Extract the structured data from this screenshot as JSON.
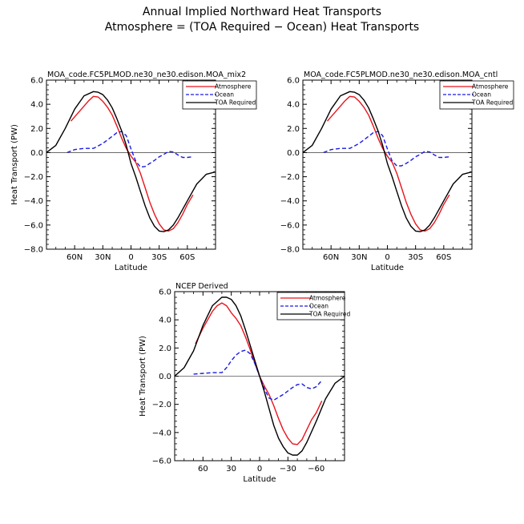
{
  "figure": {
    "title_line1": "Annual Implied Northward Heat Transports",
    "title_line2": "Atmosphere = (TOA Required − Ocean) Heat Transports"
  },
  "colors": {
    "atmosphere": "#e8141c",
    "ocean": "#1a1ae6",
    "toa": "#000000",
    "zero_line": "#555555"
  },
  "chart_data": [
    {
      "type": "line",
      "title": "MOA_code.FC5PLMOD.ne30_ne30.edison.MOA_mix2",
      "xlabel": "Latitude",
      "ylabel": "Heat Transport (PW)",
      "xlim": [
        90,
        -90
      ],
      "ylim": [
        -8,
        6
      ],
      "xticks": [
        60,
        30,
        0,
        -30,
        -60
      ],
      "xtick_labels": [
        "60N",
        "30N",
        "0",
        "30S",
        "60S"
      ],
      "yticks": [
        -8,
        -6,
        -4,
        -2,
        0,
        2,
        4,
        6
      ],
      "ytick_labels": [
        "−8.0",
        "−6.0",
        "−4.0",
        "−2.0",
        "0.0",
        "2.0",
        "4.0",
        "6.0"
      ],
      "legend": [
        "Atmosphere",
        "Ocean",
        "TOA Required"
      ],
      "series": [
        {
          "name": "Atmosphere",
          "x": [
            64,
            55,
            45,
            40,
            35,
            30,
            25,
            20,
            15,
            10,
            5,
            0,
            -5,
            -10,
            -15,
            -20,
            -25,
            -30,
            -35,
            -40,
            -45,
            -50,
            -55,
            -60,
            -66
          ],
          "y": [
            2.6,
            3.4,
            4.3,
            4.65,
            4.6,
            4.25,
            3.75,
            3.1,
            2.2,
            1.2,
            0.35,
            -0.3,
            -0.8,
            -1.7,
            -2.9,
            -4.1,
            -5.1,
            -5.9,
            -6.4,
            -6.5,
            -6.3,
            -5.8,
            -5.1,
            -4.3,
            -3.5
          ]
        },
        {
          "name": "Ocean",
          "x": [
            68,
            60,
            50,
            40,
            30,
            20,
            15,
            10,
            5,
            0,
            -5,
            -10,
            -15,
            -20,
            -25,
            -30,
            -35,
            -40,
            -45,
            -50,
            -55,
            -60,
            -66
          ],
          "y": [
            0.0,
            0.25,
            0.35,
            0.35,
            0.75,
            1.35,
            1.65,
            1.75,
            1.4,
            0.3,
            -0.7,
            -1.2,
            -1.15,
            -0.9,
            -0.65,
            -0.35,
            -0.15,
            0.1,
            0.05,
            -0.2,
            -0.4,
            -0.4,
            -0.35
          ]
        },
        {
          "name": "TOA Required",
          "x": [
            90,
            80,
            70,
            60,
            50,
            40,
            35,
            30,
            25,
            20,
            15,
            10,
            5,
            0,
            -5,
            -10,
            -15,
            -20,
            -25,
            -30,
            -35,
            -40,
            -45,
            -50,
            -60,
            -70,
            -80,
            -90
          ],
          "y": [
            0.0,
            0.6,
            2.0,
            3.6,
            4.7,
            5.05,
            5.0,
            4.8,
            4.35,
            3.7,
            2.8,
            1.8,
            0.6,
            -0.9,
            -2.0,
            -3.2,
            -4.4,
            -5.4,
            -6.1,
            -6.5,
            -6.55,
            -6.4,
            -6.0,
            -5.4,
            -4.0,
            -2.6,
            -1.8,
            -1.6
          ]
        }
      ]
    },
    {
      "type": "line",
      "title": "MOA_code.FC5PLMOD.ne30_ne30.edison.MOA_cntl",
      "xlabel": "Latitude",
      "ylabel": "",
      "xlim": [
        90,
        -90
      ],
      "ylim": [
        -8,
        6
      ],
      "xticks": [
        60,
        30,
        0,
        -30,
        -60
      ],
      "xtick_labels": [
        "60N",
        "30N",
        "0",
        "30S",
        "60S"
      ],
      "yticks": [
        -8,
        -6,
        -4,
        -2,
        0,
        2,
        4,
        6
      ],
      "ytick_labels": [
        "−8.0",
        "−6.0",
        "−4.0",
        "−2.0",
        "0.0",
        "2.0",
        "4.0",
        "6.0"
      ],
      "legend": [
        "Atmosphere",
        "Ocean",
        "TOA Required"
      ],
      "series": [
        {
          "name": "Atmosphere",
          "x": [
            64,
            55,
            45,
            40,
            35,
            30,
            25,
            20,
            15,
            10,
            5,
            0,
            -5,
            -10,
            -15,
            -20,
            -25,
            -30,
            -35,
            -40,
            -45,
            -50,
            -55,
            -60,
            -66
          ],
          "y": [
            2.6,
            3.4,
            4.3,
            4.65,
            4.6,
            4.25,
            3.75,
            3.1,
            2.2,
            1.2,
            0.35,
            -0.3,
            -0.8,
            -1.7,
            -2.9,
            -4.1,
            -5.1,
            -5.9,
            -6.4,
            -6.5,
            -6.3,
            -5.8,
            -5.1,
            -4.3,
            -3.5
          ]
        },
        {
          "name": "Ocean",
          "x": [
            68,
            60,
            50,
            40,
            30,
            20,
            15,
            10,
            5,
            0,
            -5,
            -10,
            -15,
            -20,
            -25,
            -30,
            -35,
            -40,
            -45,
            -50,
            -55,
            -60,
            -66
          ],
          "y": [
            0.0,
            0.25,
            0.35,
            0.35,
            0.75,
            1.35,
            1.65,
            1.75,
            1.4,
            0.3,
            -0.7,
            -1.1,
            -1.1,
            -0.9,
            -0.65,
            -0.35,
            -0.15,
            0.1,
            0.05,
            -0.2,
            -0.4,
            -0.4,
            -0.35
          ]
        },
        {
          "name": "TOA Required",
          "x": [
            90,
            80,
            70,
            60,
            50,
            40,
            35,
            30,
            25,
            20,
            15,
            10,
            5,
            0,
            -5,
            -10,
            -15,
            -20,
            -25,
            -30,
            -35,
            -40,
            -45,
            -50,
            -60,
            -70,
            -80,
            -90
          ],
          "y": [
            0.0,
            0.6,
            2.0,
            3.6,
            4.7,
            5.05,
            5.0,
            4.8,
            4.35,
            3.7,
            2.8,
            1.8,
            0.6,
            -0.9,
            -2.0,
            -3.2,
            -4.4,
            -5.4,
            -6.1,
            -6.5,
            -6.55,
            -6.4,
            -6.0,
            -5.4,
            -4.0,
            -2.6,
            -1.8,
            -1.6
          ]
        }
      ]
    },
    {
      "type": "line",
      "title": "NCEP Derived",
      "xlabel": "Latitude",
      "ylabel": "Heat Transport (PW)",
      "xlim": [
        90,
        -90
      ],
      "ylim": [
        -6,
        6
      ],
      "xticks": [
        60,
        30,
        0,
        -30,
        -60
      ],
      "xtick_labels": [
        "60",
        "30",
        "0",
        "−30",
        "−60"
      ],
      "yticks": [
        -6,
        -4,
        -2,
        0,
        2,
        4,
        6
      ],
      "ytick_labels": [
        "−6.0",
        "−4.0",
        "−2.0",
        "0.0",
        "2.0",
        "4.0",
        "6.0"
      ],
      "legend": [
        "Atmosphere",
        "Ocean",
        "TOA Required"
      ],
      "series": [
        {
          "name": "Atmosphere",
          "x": [
            68,
            60,
            50,
            45,
            40,
            35,
            30,
            25,
            20,
            15,
            10,
            5,
            0,
            -5,
            -10,
            -15,
            -20,
            -25,
            -30,
            -35,
            -40,
            -45,
            -50,
            -55,
            -60,
            -66
          ],
          "y": [
            2.3,
            3.4,
            4.6,
            5.0,
            5.2,
            5.0,
            4.5,
            4.1,
            3.6,
            2.8,
            1.9,
            0.9,
            0.0,
            -0.7,
            -1.3,
            -2.1,
            -3.0,
            -3.8,
            -4.4,
            -4.8,
            -4.85,
            -4.5,
            -3.8,
            -3.1,
            -2.6,
            -1.75
          ]
        },
        {
          "name": "Ocean",
          "x": [
            70,
            60,
            50,
            40,
            35,
            30,
            25,
            20,
            15,
            10,
            5,
            0,
            -5,
            -10,
            -15,
            -20,
            -25,
            -30,
            -35,
            -40,
            -45,
            -50,
            -55,
            -60,
            -66
          ],
          "y": [
            0.15,
            0.2,
            0.25,
            0.25,
            0.6,
            1.1,
            1.5,
            1.75,
            1.85,
            1.6,
            0.9,
            0.0,
            -0.9,
            -1.55,
            -1.7,
            -1.5,
            -1.3,
            -1.05,
            -0.8,
            -0.6,
            -0.55,
            -0.8,
            -0.9,
            -0.75,
            -0.3
          ]
        },
        {
          "name": "TOA Required",
          "x": [
            90,
            80,
            70,
            60,
            50,
            40,
            35,
            30,
            25,
            20,
            15,
            10,
            5,
            0,
            -5,
            -10,
            -15,
            -20,
            -25,
            -30,
            -35,
            -40,
            -45,
            -50,
            -60,
            -70,
            -80,
            -90
          ],
          "y": [
            0.0,
            0.6,
            1.8,
            3.6,
            5.0,
            5.6,
            5.6,
            5.45,
            5.0,
            4.3,
            3.3,
            2.2,
            1.1,
            0.0,
            -1.1,
            -2.3,
            -3.5,
            -4.4,
            -5.0,
            -5.45,
            -5.6,
            -5.6,
            -5.3,
            -4.7,
            -3.2,
            -1.6,
            -0.5,
            0.0
          ]
        }
      ]
    }
  ]
}
